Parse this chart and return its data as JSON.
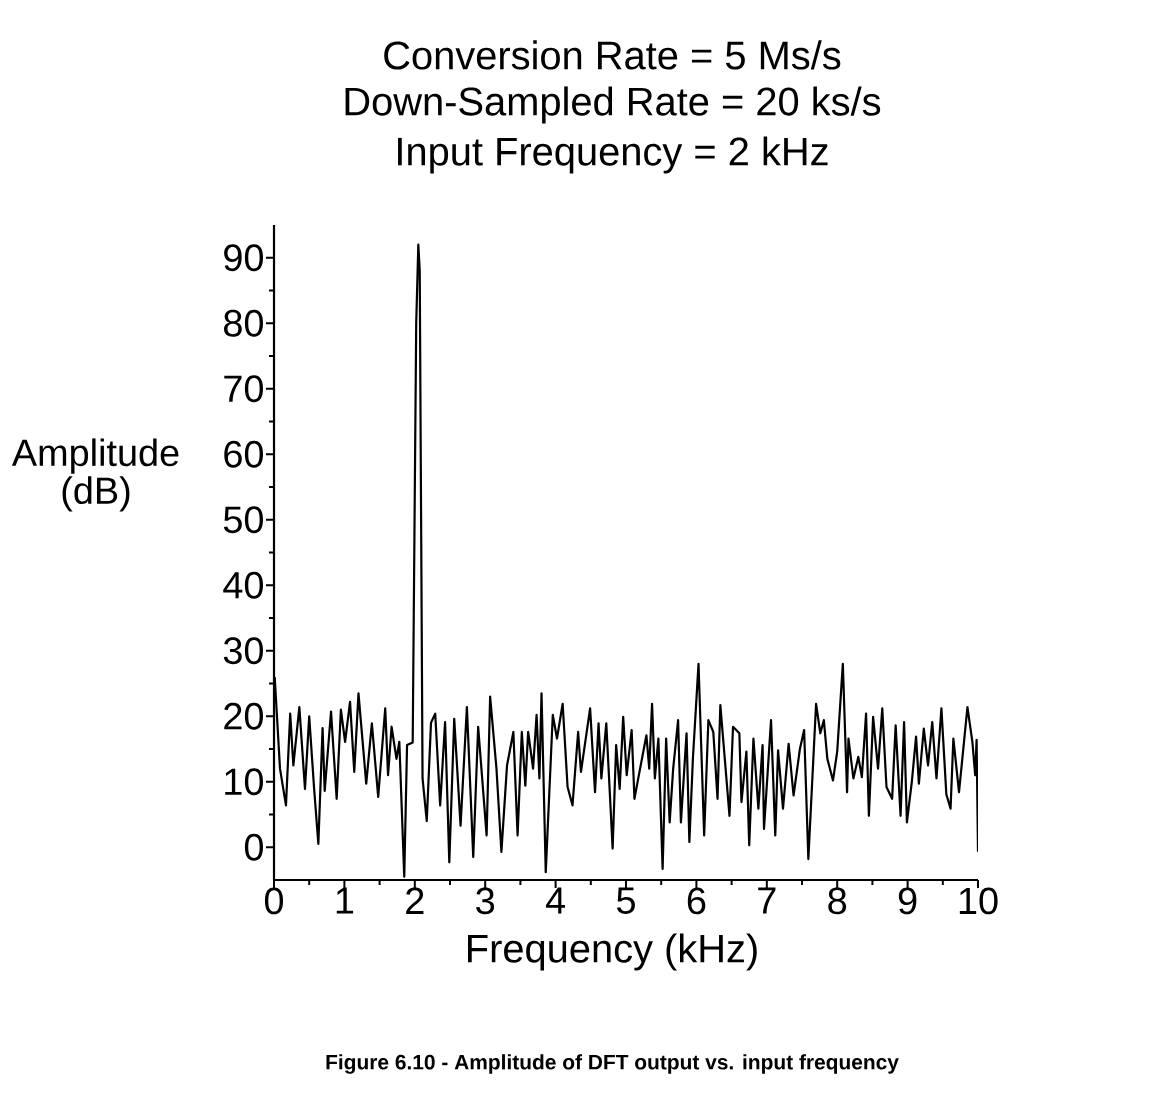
{
  "chart_data": {
    "type": "line",
    "title": "Conversion Rate = 5 Ms/s",
    "subtitle": "Down-Sampled Rate = 20 ks/s",
    "annotations": [
      "Input Frequency = 2 kHz",
      "Figure 6.10 - Amplitude of DFT output vs. input frequency"
    ],
    "xlabel": "Frequency (kHz)",
    "ylabel": "Amplitude (dB)",
    "color": "#000000",
    "x": [
      0.01,
      0.085,
      0.17,
      0.23,
      0.275,
      0.36,
      0.44,
      0.5,
      0.57,
      0.63,
      0.69,
      0.72,
      0.81,
      0.89,
      0.95,
      1.01,
      1.08,
      1.14,
      1.2,
      1.31,
      1.39,
      1.48,
      1.58,
      1.62,
      1.67,
      1.74,
      1.78,
      1.85,
      1.89,
      1.97,
      2.02,
      2.05,
      2.07,
      2.11,
      2.17,
      2.23,
      2.29,
      2.36,
      2.43,
      2.49,
      2.56,
      2.65,
      2.74,
      2.83,
      2.9,
      3.02,
      3.07,
      3.16,
      3.23,
      3.31,
      3.4,
      3.46,
      3.52,
      3.57,
      3.61,
      3.68,
      3.73,
      3.77,
      3.8,
      3.86,
      3.96,
      4.02,
      4.1,
      4.17,
      4.24,
      4.32,
      4.36,
      4.49,
      4.56,
      4.61,
      4.65,
      4.72,
      4.81,
      4.86,
      4.91,
      4.96,
      5.01,
      5.08,
      5.12,
      5.2,
      5.29,
      5.33,
      5.37,
      5.41,
      5.46,
      5.52,
      5.57,
      5.62,
      5.67,
      5.74,
      5.78,
      5.86,
      5.9,
      5.95,
      6.03,
      6.11,
      6.17,
      6.24,
      6.3,
      6.34,
      6.47,
      6.52,
      6.61,
      6.64,
      6.71,
      6.75,
      6.81,
      6.88,
      6.94,
      6.96,
      7.06,
      7.12,
      7.16,
      7.23,
      7.31,
      7.38,
      7.47,
      7.53,
      7.59,
      7.7,
      7.76,
      7.81,
      7.86,
      7.94,
      8.0,
      8.08,
      8.14,
      8.16,
      8.23,
      8.3,
      8.35,
      8.41,
      8.45,
      8.51,
      8.58,
      8.64,
      8.7,
      8.78,
      8.83,
      8.9,
      8.95,
      8.99,
      9.06,
      9.12,
      9.16,
      9.23,
      9.29,
      9.35,
      9.41,
      9.48,
      9.55,
      9.61,
      9.65,
      9.73,
      9.85,
      9.92,
      9.96,
      9.98,
      10.0
    ],
    "values": [
      26,
      12,
      6.4,
      20.4,
      12.5,
      21.4,
      8.9,
      20,
      8.9,
      0.5,
      18.2,
      8.6,
      20.7,
      7.4,
      21,
      16.1,
      22.2,
      11.5,
      23.5,
      9.7,
      18.9,
      7.7,
      21.2,
      11,
      18.4,
      13.5,
      16.1,
      -4.5,
      15.6,
      16,
      80,
      92,
      88,
      10.5,
      4,
      19,
      20.4,
      6.4,
      19.1,
      -2.3,
      19.6,
      3.3,
      21.4,
      -1.5,
      18.4,
      1.8,
      23,
      12,
      -0.7,
      12.5,
      17.6,
      1.8,
      17.6,
      9.4,
      17.6,
      12,
      20.2,
      10.5,
      23.5,
      -3.8,
      20.2,
      16.6,
      21.9,
      9.2,
      6.4,
      17.6,
      11.5,
      21.2,
      8.4,
      18.9,
      10.5,
      18.9,
      -0.2,
      15.6,
      8.9,
      19.9,
      11,
      17.9,
      7.4,
      12,
      17.1,
      12,
      21.9,
      10.5,
      16.6,
      -3.3,
      16.6,
      3.8,
      12,
      19.4,
      3.8,
      17.4,
      0.8,
      13.5,
      28,
      1.8,
      19.4,
      17.6,
      7.4,
      21.7,
      4.8,
      18.4,
      17.4,
      6.9,
      14.6,
      0.3,
      16.6,
      5.9,
      15.6,
      2.8,
      19.4,
      1.8,
      14.8,
      5.9,
      15.8,
      7.9,
      15,
      17.9,
      -1.8,
      21.9,
      17.4,
      19.4,
      13.5,
      10.2,
      14.6,
      28,
      8.4,
      16.6,
      10.5,
      13.8,
      10.7,
      20.4,
      4.8,
      19.9,
      12,
      21.2,
      9.2,
      7.4,
      18.6,
      4.8,
      19.1,
      3.8,
      10,
      16.9,
      9.7,
      18.1,
      12.5,
      19.1,
      10.5,
      21.2,
      8.1,
      5.9,
      16.6,
      8.4,
      21.4,
      16.1,
      11,
      16.4,
      -0.7
    ],
    "xlim": [
      0,
      10
    ],
    "ylim": [
      -5,
      95
    ],
    "xticks": [
      0,
      1,
      2,
      3,
      4,
      5,
      6,
      7,
      8,
      9,
      10
    ],
    "yticks": [
      0,
      10,
      20,
      30,
      40,
      50,
      60,
      70,
      80,
      90
    ]
  }
}
